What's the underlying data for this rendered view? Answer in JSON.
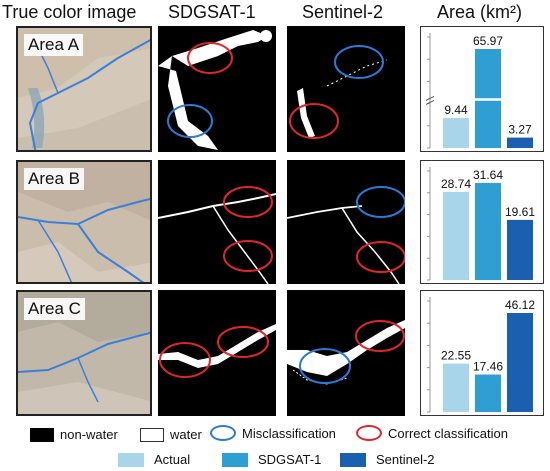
{
  "headers": {
    "true_color": "True color image",
    "sdgsat": "SDGSAT-1",
    "sentinel": "Sentinel-2",
    "area": "Area (km²)"
  },
  "areas": [
    {
      "label": "Area A"
    },
    {
      "label": "Area B"
    },
    {
      "label": "Area C"
    }
  ],
  "legend": {
    "non_water": "non-water",
    "water": "water",
    "misclass": "Misclassification",
    "correct": "Correct classification",
    "actual": "Actual",
    "sdgsat": "SDGSAT-1",
    "sentinel": "Sentinel-2"
  },
  "colors": {
    "actual": "#a9d5ea",
    "sdgsat": "#2f9fd3",
    "sentinel": "#1b5fb0",
    "misclass": "#2a7bd6",
    "correct": "#e0262b",
    "river": "#3b7fd9"
  },
  "chart_data": [
    {
      "type": "bar",
      "area": "Area A",
      "categories": [
        "Actual",
        "SDGSAT-1",
        "Sentinel-2"
      ],
      "values": [
        9.44,
        65.97,
        3.27
      ],
      "value_labels": [
        "9.44",
        "65.97",
        "3.27"
      ],
      "y_axis_break": true
    },
    {
      "type": "bar",
      "area": "Area B",
      "categories": [
        "Actual",
        "SDGSAT-1",
        "Sentinel-2"
      ],
      "values": [
        28.74,
        31.64,
        19.61
      ],
      "value_labels": [
        "28.74",
        "31.64",
        "19.61"
      ]
    },
    {
      "type": "bar",
      "area": "Area C",
      "categories": [
        "Actual",
        "SDGSAT-1",
        "Sentinel-2"
      ],
      "values": [
        22.55,
        17.46,
        46.12
      ],
      "value_labels": [
        "22.55",
        "17.46",
        "46.12"
      ]
    }
  ]
}
